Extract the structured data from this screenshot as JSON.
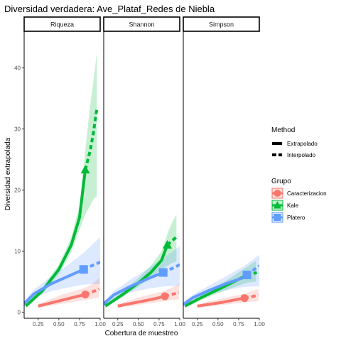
{
  "chart_data": {
    "type": "line",
    "title": "Diversidad verdadera: Ave_Plataf_Redes de Niebla",
    "xlabel": "Cobertura de muestreo",
    "ylabel": "Diversidad extrapolada",
    "xlim": [
      0.08,
      1.0
    ],
    "ylim": [
      -1,
      46
    ],
    "xticks": [
      "0.25",
      "0.50",
      "0.75",
      "1.00"
    ],
    "yticks": [
      "0",
      "10",
      "20",
      "30",
      "40"
    ],
    "grid": false,
    "legend_position": "right",
    "legend": {
      "method": {
        "title": "Method",
        "entries": [
          "Extrapolado",
          "Interpolado"
        ]
      },
      "group": {
        "title": "Grupo",
        "entries": [
          "Caracterizacion",
          "Kale",
          "Platero"
        ]
      }
    },
    "colors": {
      "Caracterizacion": "#F8766D",
      "Kale": "#00BA38",
      "Platero": "#619CFF"
    },
    "facets": [
      {
        "name": "Riqueza",
        "series": [
          {
            "name": "Caracterizacion",
            "observed": [
              0.82,
              2.9
            ],
            "interpolado": [
              [
                0.25,
                1.0
              ],
              [
                0.4,
                1.5
              ],
              [
                0.55,
                2.0
              ],
              [
                0.7,
                2.5
              ],
              [
                0.82,
                2.9
              ]
            ],
            "extrapolado": [
              [
                0.82,
                2.9
              ],
              [
                0.9,
                3.3
              ],
              [
                0.96,
                3.6
              ],
              [
                0.99,
                3.8
              ]
            ],
            "band": [
              [
                0.25,
                0.7,
                1.3
              ],
              [
                0.5,
                1.3,
                2.7
              ],
              [
                0.82,
                2.0,
                4.0
              ],
              [
                0.9,
                2.2,
                4.6
              ],
              [
                0.99,
                2.4,
                5.6
              ]
            ]
          },
          {
            "name": "Kale",
            "observed": [
              0.82,
              23.3
            ],
            "interpolado": [
              [
                0.1,
                1.0
              ],
              [
                0.3,
                3.5
              ],
              [
                0.5,
                7.0
              ],
              [
                0.65,
                11.0
              ],
              [
                0.75,
                15.5
              ],
              [
                0.82,
                23.3
              ]
            ],
            "extrapolado": [
              [
                0.82,
                23.3
              ],
              [
                0.88,
                26.5
              ],
              [
                0.92,
                29.5
              ],
              [
                0.95,
                32.5
              ],
              [
                0.96,
                33.2
              ]
            ],
            "band": [
              [
                0.1,
                0.7,
                1.3
              ],
              [
                0.3,
                3.0,
                4.0
              ],
              [
                0.5,
                6.2,
                7.8
              ],
              [
                0.65,
                9.8,
                12.2
              ],
              [
                0.75,
                13.5,
                17.5
              ],
              [
                0.82,
                16.0,
                26.5
              ],
              [
                0.88,
                17.5,
                34.0
              ],
              [
                0.92,
                18.5,
                38.0
              ],
              [
                0.96,
                19.0,
                42.5
              ]
            ]
          },
          {
            "name": "Platero",
            "observed": [
              0.8,
              7.0
            ],
            "interpolado": [
              [
                0.05,
                1.0
              ],
              [
                0.2,
                3.0
              ],
              [
                0.4,
                4.6
              ],
              [
                0.6,
                5.8
              ],
              [
                0.8,
                7.0
              ]
            ],
            "extrapolado": [
              [
                0.8,
                7.0
              ],
              [
                0.88,
                7.5
              ],
              [
                0.95,
                7.9
              ],
              [
                1.0,
                8.2
              ]
            ],
            "band": [
              [
                0.05,
                0.7,
                1.3
              ],
              [
                0.2,
                2.3,
                3.7
              ],
              [
                0.4,
                3.4,
                5.8
              ],
              [
                0.6,
                4.0,
                7.6
              ],
              [
                0.8,
                4.5,
                9.7
              ],
              [
                0.9,
                4.6,
                11.0
              ],
              [
                1.0,
                4.6,
                12.3
              ]
            ]
          }
        ]
      },
      {
        "name": "Shannon",
        "series": [
          {
            "name": "Caracterizacion",
            "observed": [
              0.82,
              2.6
            ],
            "interpolado": [
              [
                0.25,
                1.0
              ],
              [
                0.4,
                1.4
              ],
              [
                0.55,
                1.8
              ],
              [
                0.7,
                2.2
              ],
              [
                0.82,
                2.6
              ]
            ],
            "extrapolado": [
              [
                0.82,
                2.6
              ],
              [
                0.9,
                2.9
              ],
              [
                0.96,
                3.1
              ],
              [
                0.99,
                3.2
              ]
            ],
            "band": [
              [
                0.25,
                0.7,
                1.3
              ],
              [
                0.5,
                1.2,
                2.4
              ],
              [
                0.82,
                1.8,
                3.5
              ],
              [
                0.9,
                2.0,
                4.0
              ],
              [
                0.99,
                2.1,
                4.6
              ]
            ]
          },
          {
            "name": "Kale",
            "observed": [
              0.85,
              11.0
            ],
            "interpolado": [
              [
                0.1,
                1.0
              ],
              [
                0.3,
                2.8
              ],
              [
                0.5,
                4.8
              ],
              [
                0.65,
                6.5
              ],
              [
                0.78,
                8.5
              ],
              [
                0.85,
                11.0
              ]
            ],
            "extrapolado": [
              [
                0.85,
                11.0
              ],
              [
                0.9,
                11.6
              ],
              [
                0.95,
                12.2
              ],
              [
                0.97,
                12.5
              ]
            ],
            "band": [
              [
                0.1,
                0.7,
                1.3
              ],
              [
                0.3,
                2.4,
                3.2
              ],
              [
                0.5,
                4.2,
                5.6
              ],
              [
                0.65,
                5.6,
                7.6
              ],
              [
                0.78,
                7.0,
                10.0
              ],
              [
                0.85,
                7.6,
                12.8
              ],
              [
                0.9,
                8.0,
                14.5
              ],
              [
                0.96,
                8.3,
                16.0
              ]
            ]
          },
          {
            "name": "Platero",
            "observed": [
              0.8,
              6.5
            ],
            "interpolado": [
              [
                0.05,
                1.0
              ],
              [
                0.2,
                2.8
              ],
              [
                0.4,
                4.2
              ],
              [
                0.6,
                5.4
              ],
              [
                0.8,
                6.5
              ]
            ],
            "extrapolado": [
              [
                0.8,
                6.5
              ],
              [
                0.88,
                7.0
              ],
              [
                0.95,
                7.4
              ],
              [
                1.0,
                7.8
              ]
            ],
            "band": [
              [
                0.05,
                0.7,
                1.3
              ],
              [
                0.2,
                2.2,
                3.4
              ],
              [
                0.4,
                3.2,
                5.3
              ],
              [
                0.6,
                3.8,
                7.0
              ],
              [
                0.8,
                4.2,
                8.8
              ],
              [
                0.9,
                4.3,
                9.8
              ],
              [
                1.0,
                4.3,
                10.8
              ]
            ]
          }
        ]
      },
      {
        "name": "Simpson",
        "series": [
          {
            "name": "Caracterizacion",
            "observed": [
              0.82,
              2.3
            ],
            "interpolado": [
              [
                0.25,
                1.0
              ],
              [
                0.4,
                1.3
              ],
              [
                0.55,
                1.6
              ],
              [
                0.7,
                2.0
              ],
              [
                0.82,
                2.3
              ]
            ],
            "extrapolado": [
              [
                0.82,
                2.3
              ],
              [
                0.9,
                2.5
              ],
              [
                0.96,
                2.7
              ],
              [
                0.99,
                2.8
              ]
            ],
            "band": [
              [
                0.25,
                0.7,
                1.3
              ],
              [
                0.5,
                1.1,
                2.1
              ],
              [
                0.82,
                1.6,
                3.0
              ],
              [
                0.9,
                1.7,
                3.4
              ],
              [
                0.99,
                1.8,
                3.8
              ]
            ]
          },
          {
            "name": "Kale",
            "observed": [
              0.85,
              6.0
            ],
            "interpolado": [
              [
                0.1,
                1.0
              ],
              [
                0.3,
                2.4
              ],
              [
                0.5,
                3.7
              ],
              [
                0.65,
                4.7
              ],
              [
                0.78,
                5.6
              ],
              [
                0.85,
                6.0
              ]
            ],
            "extrapolado": [
              [
                0.85,
                6.0
              ],
              [
                0.9,
                6.2
              ],
              [
                0.95,
                6.4
              ],
              [
                0.97,
                6.5
              ]
            ],
            "band": [
              [
                0.1,
                0.7,
                1.3
              ],
              [
                0.3,
                2.0,
                2.8
              ],
              [
                0.5,
                3.1,
                4.3
              ],
              [
                0.65,
                3.9,
                5.6
              ],
              [
                0.78,
                4.5,
                6.8
              ],
              [
                0.85,
                4.8,
                7.4
              ],
              [
                0.9,
                4.9,
                7.9
              ],
              [
                0.96,
                5.0,
                8.4
              ]
            ]
          },
          {
            "name": "Platero",
            "observed": [
              0.85,
              6.1
            ],
            "interpolado": [
              [
                0.05,
                1.0
              ],
              [
                0.2,
                2.4
              ],
              [
                0.4,
                3.6
              ],
              [
                0.6,
                4.7
              ],
              [
                0.8,
                5.6
              ],
              [
                0.85,
                6.1
              ]
            ],
            "extrapolado": [
              [
                0.85,
                6.1
              ],
              [
                0.9,
                6.6
              ],
              [
                0.95,
                7.1
              ],
              [
                1.0,
                7.6
              ]
            ],
            "band": [
              [
                0.05,
                0.7,
                1.3
              ],
              [
                0.2,
                2.0,
                2.9
              ],
              [
                0.4,
                2.9,
                4.4
              ],
              [
                0.6,
                3.6,
                5.9
              ],
              [
                0.8,
                4.1,
                7.4
              ],
              [
                0.9,
                4.2,
                8.4
              ],
              [
                1.0,
                4.2,
                9.4
              ]
            ]
          }
        ]
      }
    ]
  }
}
